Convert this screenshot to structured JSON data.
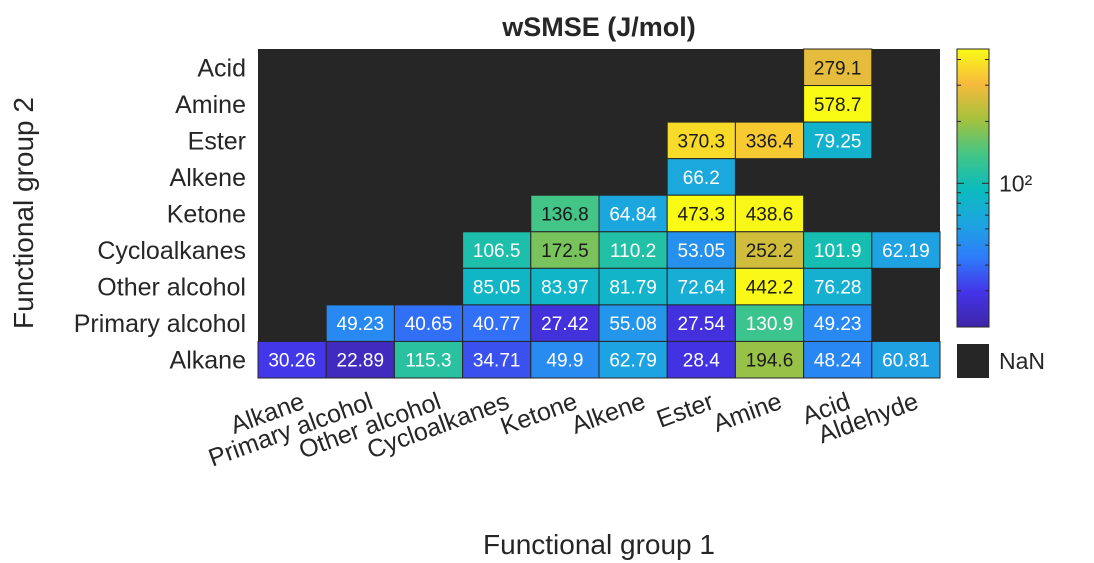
{
  "chart_data": {
    "type": "heatmap",
    "title": "wSMSE (J/mol)",
    "xlabel": "Functional group 1",
    "ylabel": "Functional group 2",
    "x_categories": [
      "Alkane",
      "Primary alcohol",
      "Other alcohol",
      "Cycloalkanes",
      "Ketone",
      "Alkene",
      "Ester",
      "Amine",
      "Acid",
      "Aldehyde"
    ],
    "y_categories": [
      "Acid",
      "Amine",
      "Ester",
      "Alkene",
      "Ketone",
      "Cycloalkanes",
      "Other alcohol",
      "Primary alcohol",
      "Alkane"
    ],
    "values": [
      [
        null,
        null,
        null,
        null,
        null,
        null,
        null,
        null,
        279.1,
        null
      ],
      [
        null,
        null,
        null,
        null,
        null,
        null,
        null,
        null,
        578.7,
        null
      ],
      [
        null,
        null,
        null,
        null,
        null,
        null,
        370.3,
        336.4,
        79.25,
        null
      ],
      [
        null,
        null,
        null,
        null,
        null,
        null,
        66.2,
        null,
        null,
        null
      ],
      [
        null,
        null,
        null,
        null,
        136.8,
        64.84,
        473.3,
        438.6,
        null,
        null
      ],
      [
        null,
        null,
        null,
        106.5,
        172.5,
        110.2,
        53.05,
        252.2,
        101.9,
        62.19
      ],
      [
        null,
        null,
        null,
        85.05,
        83.97,
        81.79,
        72.64,
        442.2,
        76.28,
        null
      ],
      [
        null,
        49.23,
        40.65,
        40.77,
        27.42,
        55.08,
        27.54,
        130.9,
        49.23,
        null
      ],
      [
        30.26,
        22.89,
        115.3,
        34.71,
        49.9,
        62.79,
        28.4,
        194.6,
        48.24,
        60.81
      ]
    ],
    "value_labels": [
      [
        null,
        null,
        null,
        null,
        null,
        null,
        null,
        null,
        "279.1",
        null
      ],
      [
        null,
        null,
        null,
        null,
        null,
        null,
        null,
        null,
        "578.7",
        null
      ],
      [
        null,
        null,
        null,
        null,
        null,
        null,
        "370.3",
        "336.4",
        "79.25",
        null
      ],
      [
        null,
        null,
        null,
        null,
        null,
        null,
        "66.2",
        null,
        null,
        null
      ],
      [
        null,
        null,
        null,
        null,
        "136.8",
        "64.84",
        "473.3",
        "438.6",
        null,
        null
      ],
      [
        null,
        null,
        null,
        "106.5",
        "172.5",
        "110.2",
        "53.05",
        "252.2",
        "101.9",
        "62.19"
      ],
      [
        null,
        null,
        null,
        "85.05",
        "83.97",
        "81.79",
        "72.64",
        "442.2",
        "76.28",
        null
      ],
      [
        null,
        "49.23",
        "40.65",
        "40.77",
        "27.42",
        "55.08",
        "27.54",
        "130.9",
        "49.23",
        null
      ],
      [
        "30.26",
        "22.89",
        "115.3",
        "34.71",
        "49.9",
        "62.79",
        "28.4",
        "194.6",
        "48.24",
        "60.81"
      ]
    ],
    "color_scale": "log",
    "color_range": [
      20,
      450
    ],
    "colormap": "parula",
    "colorbar": {
      "tick_label": "10²",
      "tick_value": 100,
      "position": "right"
    },
    "missing_label": "NaN",
    "missing_color": "#262626",
    "grid": false
  }
}
